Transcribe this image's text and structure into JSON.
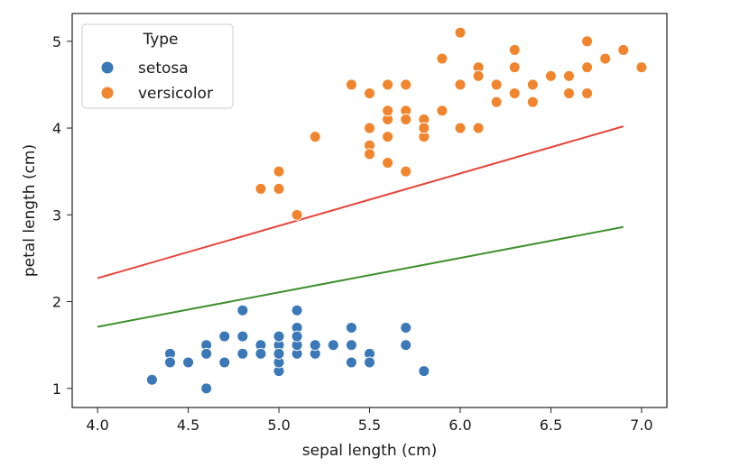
{
  "chart_data": {
    "type": "scatter",
    "title": "",
    "xlabel": "sepal length (cm)",
    "ylabel": "petal length (cm)",
    "xlim": [
      3.86,
      7.14
    ],
    "ylim": [
      0.78,
      5.32
    ],
    "xticks": [
      4.0,
      4.5,
      5.0,
      5.5,
      6.0,
      6.5,
      7.0
    ],
    "xtick_labels": [
      "4.0",
      "4.5",
      "5.0",
      "5.5",
      "6.0",
      "6.5",
      "7.0"
    ],
    "yticks": [
      1,
      2,
      3,
      4,
      5
    ],
    "ytick_labels": [
      "1",
      "2",
      "3",
      "4",
      "5"
    ],
    "grid": false,
    "legend": {
      "title": "Type",
      "placement": "top-left",
      "entries": [
        "setosa",
        "versicolor"
      ]
    },
    "series": [
      {
        "name": "setosa",
        "color": "#3a78b7",
        "points": [
          [
            5.1,
            1.4
          ],
          [
            4.9,
            1.4
          ],
          [
            4.7,
            1.3
          ],
          [
            4.6,
            1.5
          ],
          [
            5.0,
            1.4
          ],
          [
            5.4,
            1.7
          ],
          [
            4.6,
            1.4
          ],
          [
            5.0,
            1.5
          ],
          [
            4.4,
            1.4
          ],
          [
            4.9,
            1.5
          ],
          [
            5.4,
            1.5
          ],
          [
            4.8,
            1.6
          ],
          [
            4.8,
            1.4
          ],
          [
            4.3,
            1.1
          ],
          [
            5.8,
            1.2
          ],
          [
            5.7,
            1.5
          ],
          [
            5.4,
            1.3
          ],
          [
            5.1,
            1.4
          ],
          [
            5.7,
            1.7
          ],
          [
            5.1,
            1.5
          ],
          [
            5.4,
            1.7
          ],
          [
            5.1,
            1.5
          ],
          [
            4.6,
            1.0
          ],
          [
            5.1,
            1.7
          ],
          [
            4.8,
            1.9
          ],
          [
            5.0,
            1.6
          ],
          [
            5.0,
            1.6
          ],
          [
            5.2,
            1.5
          ],
          [
            5.2,
            1.4
          ],
          [
            4.7,
            1.6
          ],
          [
            4.8,
            1.6
          ],
          [
            5.4,
            1.5
          ],
          [
            5.2,
            1.5
          ],
          [
            5.5,
            1.4
          ],
          [
            4.9,
            1.5
          ],
          [
            5.0,
            1.2
          ],
          [
            5.5,
            1.3
          ],
          [
            4.9,
            1.4
          ],
          [
            4.4,
            1.3
          ],
          [
            5.1,
            1.5
          ],
          [
            5.0,
            1.3
          ],
          [
            4.5,
            1.3
          ],
          [
            4.4,
            1.3
          ],
          [
            5.0,
            1.6
          ],
          [
            5.1,
            1.9
          ],
          [
            4.8,
            1.4
          ],
          [
            5.1,
            1.6
          ],
          [
            4.6,
            1.4
          ],
          [
            5.3,
            1.5
          ],
          [
            5.0,
            1.4
          ]
        ]
      },
      {
        "name": "versicolor",
        "color": "#f0852d",
        "points": [
          [
            7.0,
            4.7
          ],
          [
            6.4,
            4.5
          ],
          [
            6.9,
            4.9
          ],
          [
            5.5,
            4.0
          ],
          [
            6.5,
            4.6
          ],
          [
            5.7,
            4.5
          ],
          [
            6.3,
            4.7
          ],
          [
            4.9,
            3.3
          ],
          [
            6.6,
            4.6
          ],
          [
            5.2,
            3.9
          ],
          [
            5.0,
            3.5
          ],
          [
            5.9,
            4.2
          ],
          [
            6.0,
            4.0
          ],
          [
            6.1,
            4.7
          ],
          [
            5.6,
            3.6
          ],
          [
            6.7,
            4.4
          ],
          [
            5.6,
            4.5
          ],
          [
            5.8,
            4.1
          ],
          [
            6.2,
            4.5
          ],
          [
            5.6,
            3.9
          ],
          [
            5.9,
            4.8
          ],
          [
            6.1,
            4.0
          ],
          [
            6.3,
            4.9
          ],
          [
            6.1,
            4.7
          ],
          [
            6.4,
            4.3
          ],
          [
            6.6,
            4.4
          ],
          [
            6.8,
            4.8
          ],
          [
            6.7,
            5.0
          ],
          [
            6.0,
            4.5
          ],
          [
            5.7,
            3.5
          ],
          [
            5.5,
            3.8
          ],
          [
            5.5,
            3.7
          ],
          [
            5.8,
            3.9
          ],
          [
            6.0,
            5.1
          ],
          [
            5.4,
            4.5
          ],
          [
            6.0,
            4.5
          ],
          [
            6.7,
            4.7
          ],
          [
            6.3,
            4.4
          ],
          [
            5.6,
            4.1
          ],
          [
            5.5,
            4.0
          ],
          [
            5.5,
            4.4
          ],
          [
            6.1,
            4.6
          ],
          [
            5.8,
            4.0
          ],
          [
            5.0,
            3.3
          ],
          [
            5.6,
            4.2
          ],
          [
            5.7,
            4.2
          ],
          [
            5.7,
            4.2
          ],
          [
            6.2,
            4.3
          ],
          [
            5.1,
            3.0
          ],
          [
            5.7,
            4.1
          ]
        ]
      }
    ],
    "lines": [
      {
        "color": "#e8443a",
        "x": [
          4.0,
          6.9
        ],
        "y": [
          2.27,
          4.02
        ]
      },
      {
        "color": "#3f8f2f",
        "x": [
          4.0,
          6.9
        ],
        "y": [
          1.71,
          2.86
        ]
      }
    ]
  }
}
